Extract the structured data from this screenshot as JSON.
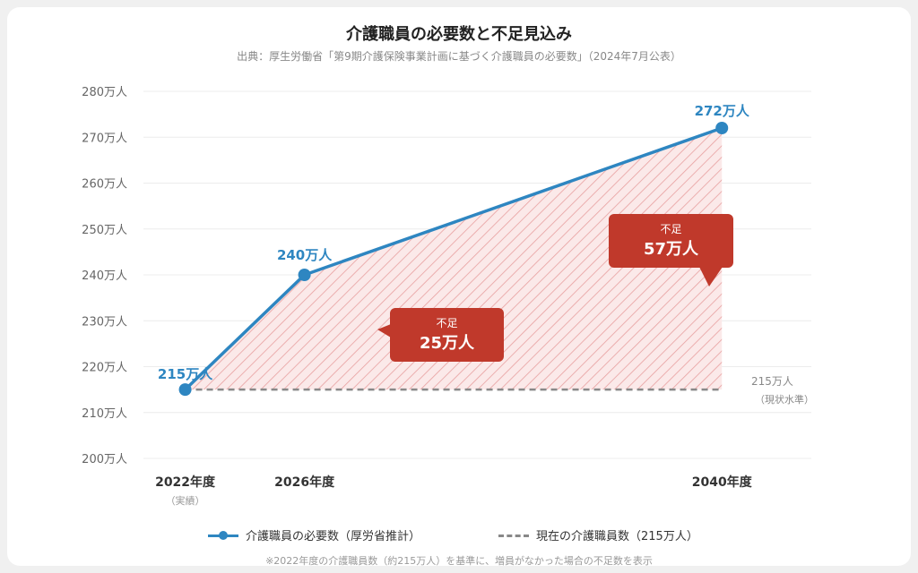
{
  "chart_data": {
    "type": "line",
    "title": "介護職員の必要数と不足見込み",
    "subtitle": "出典：厚生労働省「第9期介護保険事業計画に基づく介護職員の必要数」（2024年7月公表）",
    "x": [
      2022,
      2026,
      2040
    ],
    "x_labels": [
      "2022年度",
      "2026年度",
      "2040年度"
    ],
    "x_sublabels": [
      "（実績）",
      "",
      ""
    ],
    "series": [
      {
        "name": "介護職員の必要数（厚労省推計）",
        "values": [
          215,
          240,
          272
        ],
        "data_labels": [
          "215万人",
          "240万人",
          "272万人"
        ],
        "color": "#2e86c1"
      }
    ],
    "baseline": {
      "name": "現在の介護職員数（215万人）",
      "value": 215,
      "label": "215万人",
      "sublabel": "（現状水準）",
      "color": "#888888"
    },
    "ylim": [
      200,
      280
    ],
    "yticks": [
      200,
      210,
      220,
      230,
      240,
      250,
      260,
      270,
      280
    ],
    "ytick_labels": [
      "200万人",
      "210万人",
      "220万人",
      "230万人",
      "240万人",
      "250万人",
      "260万人",
      "270万人",
      "280万人"
    ],
    "annotations": [
      {
        "year": 2026,
        "title": "不足",
        "value": "25万人",
        "color": "#c0392b"
      },
      {
        "year": 2040,
        "title": "不足",
        "value": "57万人",
        "color": "#c0392b"
      }
    ],
    "shortage_fill_color": "#e74c3c",
    "grid": true,
    "legend_position": "bottom",
    "footnote": "※2022年度の介護職員数（約215万人）を基準に、増員がなかった場合の不足数を表示"
  }
}
